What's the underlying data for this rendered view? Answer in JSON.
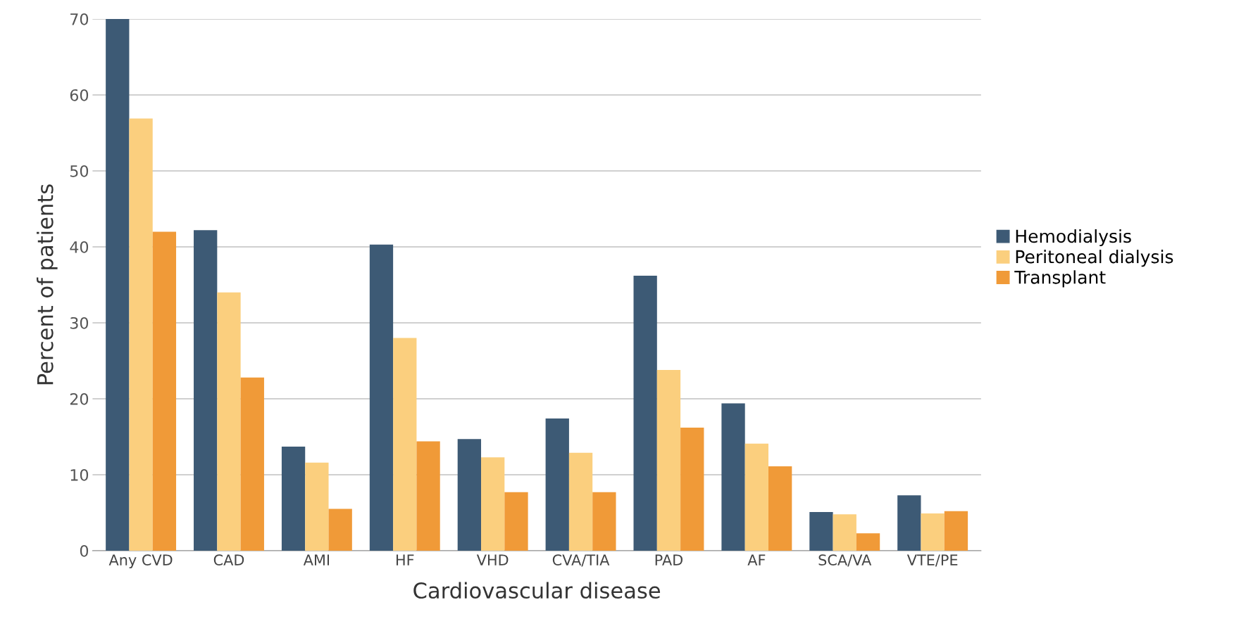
{
  "chart_data": {
    "type": "bar",
    "xlabel": "Cardiovascular disease",
    "ylabel": "Percent of patients",
    "categories": [
      "Any CVD",
      "CAD",
      "AMI",
      "HF",
      "VHD",
      "CVA/TIA",
      "PAD",
      "AF",
      "SCA/VA",
      "VTE/PE"
    ],
    "series": [
      {
        "name": "Hemodialysis",
        "color": "#3d5a75",
        "values": [
          70,
          42.2,
          13.7,
          40.3,
          14.7,
          17.4,
          36.2,
          19.4,
          5.1,
          7.3
        ]
      },
      {
        "name": "Peritoneal dialysis",
        "color": "#fbcf7e",
        "values": [
          56.9,
          34,
          11.6,
          28,
          12.3,
          12.9,
          23.8,
          14.1,
          4.8,
          4.9
        ]
      },
      {
        "name": "Transplant",
        "color": "#f09a38",
        "values": [
          42,
          22.8,
          5.5,
          14.4,
          7.7,
          7.7,
          16.2,
          11.1,
          2.3,
          5.2
        ]
      }
    ],
    "ylim": [
      0,
      70
    ],
    "yticks": [
      0,
      10,
      20,
      30,
      40,
      50,
      60,
      70
    ],
    "grid": "y",
    "legend": "right"
  }
}
